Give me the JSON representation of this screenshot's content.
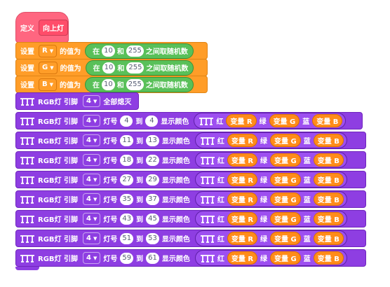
{
  "define": {
    "keyword": "定义",
    "name": "向上灯"
  },
  "set_blocks": [
    {
      "label_set": "设置",
      "variable": "R",
      "label_value": "的值为",
      "random": {
        "prefix": "在",
        "from": "10",
        "and": "和",
        "to": "255",
        "suffix": "之间取随机数"
      }
    },
    {
      "label_set": "设置",
      "variable": "G",
      "label_value": "的值为",
      "random": {
        "prefix": "在",
        "from": "10",
        "and": "和",
        "to": "255",
        "suffix": "之间取随机数"
      }
    },
    {
      "label_set": "设置",
      "variable": "B",
      "label_value": "的值为",
      "random": {
        "prefix": "在",
        "from": "10",
        "and": "和",
        "to": "255",
        "suffix": "之间取随机数"
      }
    }
  ],
  "off_block": {
    "label": "RGB灯 引脚",
    "pin": "4",
    "action": "全部熄灭"
  },
  "rgb_rows": [
    {
      "label": "RGB灯 引脚",
      "pin": "4",
      "lamp_label": "灯号",
      "from": "4",
      "to_label": "到",
      "to": "4",
      "show_label": "显示颜色",
      "red_label": "红",
      "red_var": "变量 R",
      "green_label": "绿",
      "green_var": "变量 G",
      "blue_label": "蓝",
      "blue_var": "变量 B"
    },
    {
      "label": "RGB灯 引脚",
      "pin": "4",
      "lamp_label": "灯号",
      "from": "11",
      "to_label": "到",
      "to": "13",
      "show_label": "显示颜色",
      "red_label": "红",
      "red_var": "变量 R",
      "green_label": "绿",
      "green_var": "变量 G",
      "blue_label": "蓝",
      "blue_var": "变量 B"
    },
    {
      "label": "RGB灯 引脚",
      "pin": "4",
      "lamp_label": "灯号",
      "from": "18",
      "to_label": "到",
      "to": "22",
      "show_label": "显示颜色",
      "red_label": "红",
      "red_var": "变量 R",
      "green_label": "绿",
      "green_var": "变量 G",
      "blue_label": "蓝",
      "blue_var": "变量 B"
    },
    {
      "label": "RGB灯 引脚",
      "pin": "4",
      "lamp_label": "灯号",
      "from": "27",
      "to_label": "到",
      "to": "29",
      "show_label": "显示颜色",
      "red_label": "红",
      "red_var": "变量 R",
      "green_label": "绿",
      "green_var": "变量 G",
      "blue_label": "蓝",
      "blue_var": "变量 B"
    },
    {
      "label": "RGB灯 引脚",
      "pin": "4",
      "lamp_label": "灯号",
      "from": "35",
      "to_label": "到",
      "to": "37",
      "show_label": "显示颜色",
      "red_label": "红",
      "red_var": "变量 R",
      "green_label": "绿",
      "green_var": "变量 G",
      "blue_label": "蓝",
      "blue_var": "变量 B"
    },
    {
      "label": "RGB灯 引脚",
      "pin": "4",
      "lamp_label": "灯号",
      "from": "43",
      "to_label": "到",
      "to": "45",
      "show_label": "显示颜色",
      "red_label": "红",
      "red_var": "变量 R",
      "green_label": "绿",
      "green_var": "变量 G",
      "blue_label": "蓝",
      "blue_var": "变量 B"
    },
    {
      "label": "RGB灯 引脚",
      "pin": "4",
      "lamp_label": "灯号",
      "from": "51",
      "to_label": "到",
      "to": "53",
      "show_label": "显示颜色",
      "red_label": "红",
      "red_var": "变量 R",
      "green_label": "绿",
      "green_var": "变量 G",
      "blue_label": "蓝",
      "blue_var": "变量 B"
    },
    {
      "label": "RGB灯 引脚",
      "pin": "4",
      "lamp_label": "灯号",
      "from": "59",
      "to_label": "到",
      "to": "61",
      "show_label": "显示颜色",
      "red_label": "红",
      "red_var": "变量 R",
      "green_label": "绿",
      "green_var": "变量 G",
      "blue_label": "蓝",
      "blue_var": "变量 B"
    }
  ],
  "colors": {
    "define": "#ff6680",
    "set": "#ff9d28",
    "random": "#59c059",
    "rgb": "#8e3ee2",
    "variable": "#ff8c1a"
  },
  "icons": {
    "rgb_strip": "rgb-strip-icon",
    "dropdown": "caret-down-icon"
  }
}
